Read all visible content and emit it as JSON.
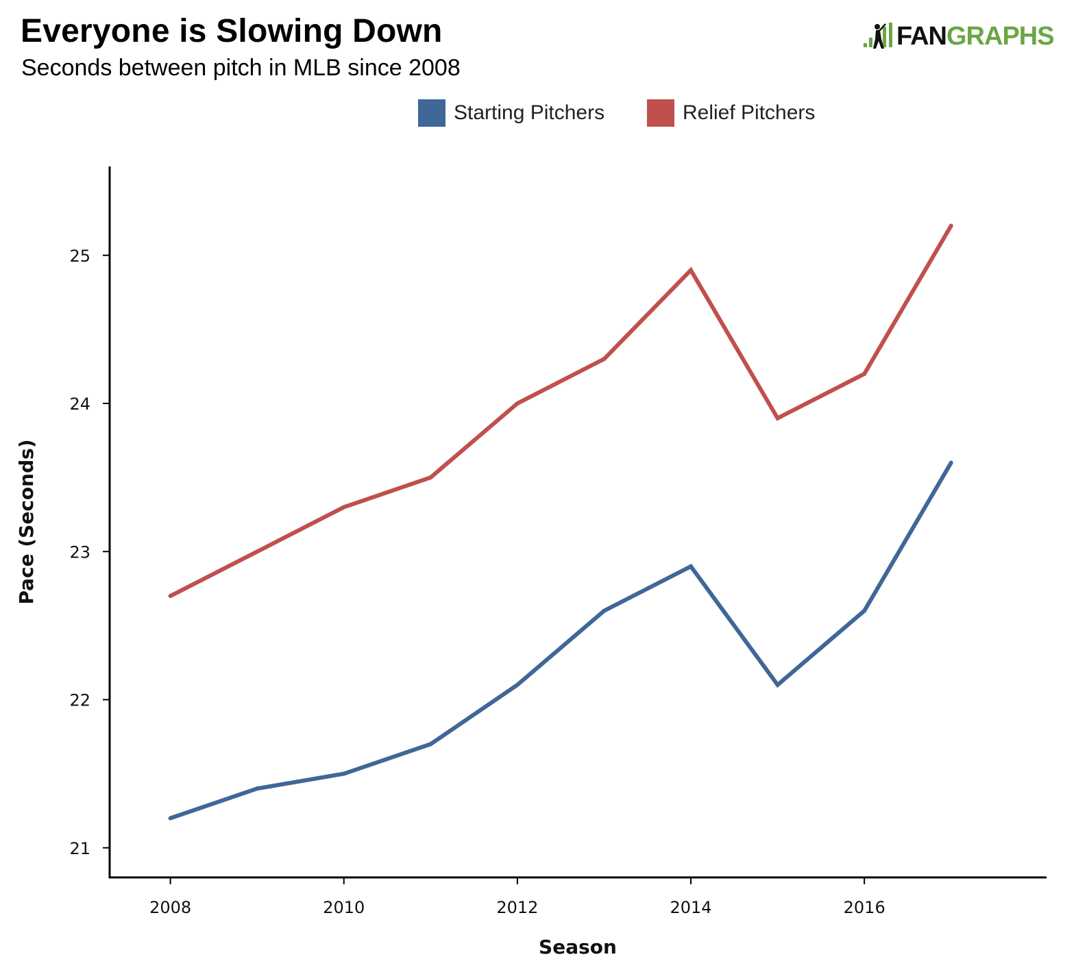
{
  "header": {
    "title": "Everyone is Slowing Down",
    "subtitle": "Seconds between pitch in MLB since 2008"
  },
  "logo": {
    "part1": "FAN",
    "part2": "GRAPHS",
    "accent_color": "#6aa644"
  },
  "chart_data": {
    "type": "line",
    "title": "Everyone is Slowing Down",
    "subtitle": "Seconds between pitch in MLB since 2008",
    "xlabel": "Season",
    "ylabel": "Pace (Seconds)",
    "x": [
      2008,
      2009,
      2010,
      2011,
      2012,
      2013,
      2014,
      2015,
      2016,
      2017
    ],
    "x_ticks": [
      "2008",
      "2010",
      "2012",
      "2014",
      "2016"
    ],
    "y_ticks": [
      "21",
      "22",
      "23",
      "24",
      "25"
    ],
    "xlim": [
      2007.3,
      2018.1
    ],
    "ylim": [
      20.8,
      25.6
    ],
    "grid": false,
    "legend_position": "top-center",
    "series": [
      {
        "name": "Starting Pitchers",
        "color": "#3f6797",
        "values": [
          21.2,
          21.4,
          21.5,
          21.7,
          22.1,
          22.6,
          22.9,
          22.1,
          22.6,
          23.6
        ]
      },
      {
        "name": "Relief Pitchers",
        "color": "#c0504d",
        "values": [
          22.7,
          23.0,
          23.3,
          23.5,
          24.0,
          24.3,
          24.9,
          23.9,
          24.2,
          25.2
        ]
      }
    ]
  }
}
